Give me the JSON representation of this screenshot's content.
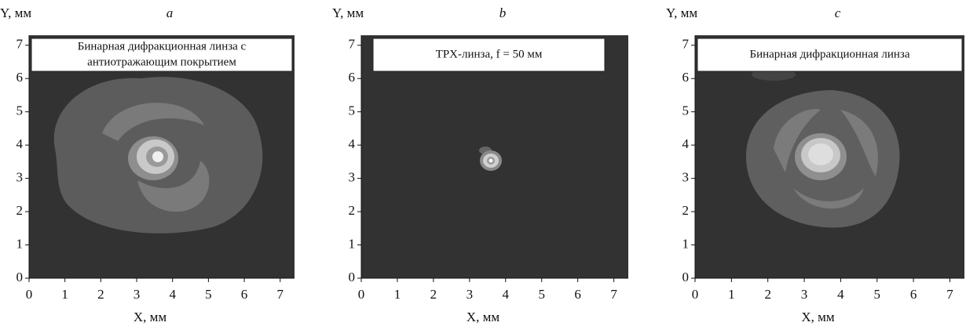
{
  "chart_data": [
    {
      "type": "image",
      "panel_label": "a",
      "xlabel": "X, мм",
      "ylabel": "Y, мм",
      "annotation": [
        "Бинарная дифракционная линза с",
        "антиотражающим покрытием"
      ],
      "xlim": [
        0,
        7.4
      ],
      "ylim": [
        0,
        7.3
      ],
      "xticks": [
        0,
        1,
        2,
        3,
        4,
        5,
        6,
        7
      ],
      "yticks": [
        0,
        1,
        2,
        3,
        4,
        5,
        6,
        7
      ]
    },
    {
      "type": "image",
      "panel_label": "b",
      "xlabel": "X, мм",
      "ylabel": "Y, мм",
      "annotation": [
        "TPX-линза, f = 50 мм"
      ],
      "xlim": [
        0,
        7.4
      ],
      "ylim": [
        0,
        7.3
      ],
      "xticks": [
        0,
        1,
        2,
        3,
        4,
        5,
        6,
        7
      ],
      "yticks": [
        0,
        1,
        2,
        3,
        4,
        5,
        6,
        7
      ]
    },
    {
      "type": "image",
      "panel_label": "c",
      "xlabel": "X, мм",
      "ylabel": "Y, мм",
      "annotation": [
        "Бинарная дифракционная линза"
      ],
      "xlim": [
        0,
        7.4
      ],
      "ylim": [
        0,
        7.3
      ],
      "xticks": [
        0,
        1,
        2,
        3,
        4,
        5,
        6,
        7
      ],
      "yticks": [
        0,
        1,
        2,
        3,
        4,
        5,
        6,
        7
      ]
    }
  ]
}
